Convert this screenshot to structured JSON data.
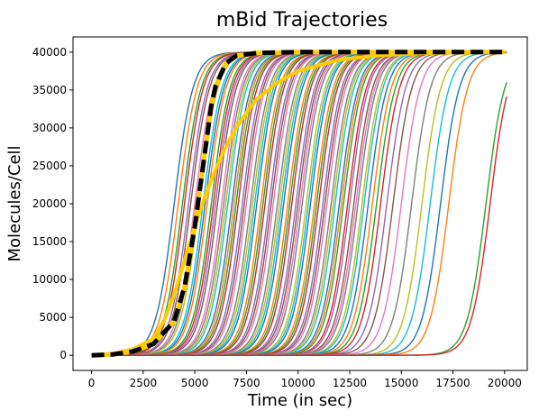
{
  "chart_data": {
    "type": "line",
    "title": "mBid Trajectories",
    "xlabel": "Time (in sec)",
    "ylabel": "Molecules/Cell",
    "xlim": [
      -900,
      21100
    ],
    "ylim": [
      -2000,
      42000
    ],
    "xticks": [
      0,
      2500,
      5000,
      7500,
      10000,
      12500,
      15000,
      17500,
      20000
    ],
    "yticks": [
      0,
      5000,
      10000,
      15000,
      20000,
      25000,
      30000,
      35000,
      40000
    ],
    "xtick_labels": [
      "0",
      "2500",
      "5000",
      "7500",
      "10000",
      "12500",
      "15000",
      "17500",
      "20000"
    ],
    "ytick_labels": [
      "0",
      "5000",
      "10000",
      "15000",
      "20000",
      "25000",
      "30000",
      "35000",
      "40000"
    ],
    "grid": false,
    "legend": "none",
    "plateau": 40000,
    "t_end": 20100,
    "palette": [
      "#1f77b4",
      "#ff7f0e",
      "#2ca02c",
      "#d62728",
      "#9467bd",
      "#8c564b",
      "#e377c2",
      "#7f7f7f",
      "#bcbd22",
      "#17becf"
    ],
    "trajectory_midpoints": [
      4000,
      4200,
      4400,
      4500,
      4700,
      4800,
      5000,
      5100,
      5200,
      5400,
      5500,
      5600,
      5800,
      5900,
      6000,
      6100,
      6300,
      6400,
      6500,
      6600,
      6800,
      6900,
      7000,
      7100,
      7300,
      7400,
      7500,
      7700,
      7800,
      7900,
      8000,
      8200,
      8300,
      8400,
      8600,
      8700,
      8800,
      9000,
      9100,
      9200,
      9300,
      9500,
      9600,
      9700,
      9900,
      10000,
      10100,
      10200,
      10400,
      10500,
      10600,
      10800,
      10900,
      11000,
      11200,
      11300,
      11400,
      11600,
      11700,
      11800,
      12000,
      12100,
      12200,
      12400,
      12500,
      12700,
      12800,
      12900,
      13100,
      13200,
      13400,
      13600,
      13800,
      14000,
      14300,
      14600,
      15000,
      15500,
      16000,
      16400,
      16900,
      17300,
      19100,
      19300
    ],
    "series": [
      {
        "x": [
          0,
          1000,
          2000,
          3000,
          3500,
          4000,
          4500,
          5000,
          5500,
          6000,
          6500,
          7000,
          7500,
          8000,
          9000,
          10000,
          12000,
          14000,
          16000,
          18000,
          20000
        ],
        "y": [
          0,
          200,
          800,
          2200,
          4500,
          8000,
          12500,
          17000,
          21000,
          24500,
          27500,
          30000,
          32000,
          33800,
          36000,
          37500,
          39000,
          39600,
          39850,
          39950,
          40000
        ]
      },
      {
        "x": [
          0,
          1000,
          2000,
          3000,
          4000,
          4500,
          5000,
          5200,
          5500,
          5800,
          6000,
          6500,
          7000,
          8000,
          10000,
          14000,
          20000
        ],
        "y": [
          0,
          100,
          500,
          1500,
          4500,
          9000,
          17000,
          21000,
          27000,
          33000,
          35500,
          38500,
          39500,
          39900,
          40000,
          40000,
          40000
        ]
      }
    ]
  }
}
